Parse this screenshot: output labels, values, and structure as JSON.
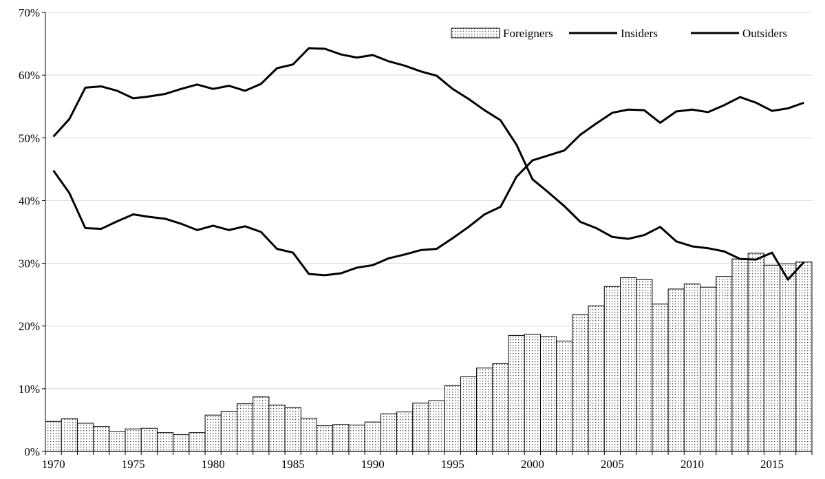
{
  "chart_data": {
    "type": "bar",
    "title": "",
    "xlabel": "",
    "ylabel": "",
    "ylim": [
      0,
      70
    ],
    "y_unit": "%",
    "grid": "horizontal",
    "legend_placement": "top-right",
    "x": [
      1970,
      1971,
      1972,
      1973,
      1974,
      1975,
      1976,
      1977,
      1978,
      1979,
      1980,
      1981,
      1982,
      1983,
      1984,
      1985,
      1986,
      1987,
      1988,
      1989,
      1990,
      1991,
      1992,
      1993,
      1994,
      1995,
      1996,
      1997,
      1998,
      1999,
      2000,
      2001,
      2002,
      2003,
      2004,
      2005,
      2006,
      2007,
      2008,
      2009,
      2010,
      2011,
      2012,
      2013,
      2014,
      2015,
      2016,
      2017
    ],
    "x_tick_labels": [
      "1970",
      "1975",
      "1980",
      "1985",
      "1990",
      "1995",
      "2000",
      "2005",
      "2010",
      "2015"
    ],
    "y_tick_labels": [
      "0%",
      "10%",
      "20%",
      "30%",
      "40%",
      "50%",
      "60%",
      "70%"
    ],
    "series": [
      {
        "name": "Foreigners",
        "type": "bar",
        "pattern": "dotted",
        "values": [
          4.8,
          5.2,
          4.5,
          4.0,
          3.2,
          3.6,
          3.7,
          3.0,
          2.7,
          3.0,
          5.8,
          6.4,
          7.6,
          8.7,
          7.4,
          7.0,
          5.3,
          4.1,
          4.3,
          4.2,
          4.7,
          6.0,
          6.3,
          7.7,
          8.1,
          10.5,
          11.9,
          13.3,
          14.0,
          18.5,
          18.7,
          18.3,
          17.6,
          21.8,
          23.2,
          26.3,
          27.7,
          27.4,
          23.5,
          25.9,
          26.7,
          26.2,
          27.9,
          30.7,
          31.6,
          29.7,
          29.9,
          30.2
        ]
      },
      {
        "name": "Insiders",
        "type": "line",
        "values": [
          50.2,
          53.0,
          58.0,
          58.2,
          57.5,
          56.3,
          56.6,
          57.0,
          57.8,
          58.5,
          57.8,
          58.3,
          57.5,
          58.6,
          61.1,
          61.7,
          64.3,
          64.2,
          63.3,
          62.8,
          63.2,
          62.2,
          61.5,
          60.6,
          59.9,
          57.8,
          56.2,
          54.4,
          52.8,
          48.9,
          43.4,
          41.3,
          39.1,
          36.6,
          35.6,
          34.2,
          33.9,
          34.5,
          35.8,
          33.5,
          32.7,
          32.4,
          31.9,
          30.7,
          30.6,
          31.7,
          27.4,
          30.2
        ]
      },
      {
        "name": "Outsiders",
        "type": "line",
        "values": [
          44.8,
          41.2,
          35.6,
          35.5,
          36.7,
          37.8,
          37.4,
          37.1,
          36.3,
          35.3,
          36.0,
          35.3,
          35.9,
          35.0,
          32.3,
          31.7,
          28.3,
          28.1,
          28.4,
          29.3,
          29.7,
          30.8,
          31.4,
          32.1,
          32.3,
          34.0,
          35.8,
          37.8,
          39.0,
          43.8,
          46.4,
          47.2,
          48.0,
          50.5,
          52.3,
          54.0,
          54.5,
          54.4,
          52.4,
          54.2,
          54.5,
          54.1,
          55.2,
          56.5,
          55.6,
          54.3,
          54.7,
          55.6
        ]
      }
    ],
    "colors": {
      "bar_fill": "#ffffff",
      "bar_dots": "#444444",
      "line": "#000000",
      "grid": "#d9d9d9",
      "axis": "#000000"
    }
  }
}
